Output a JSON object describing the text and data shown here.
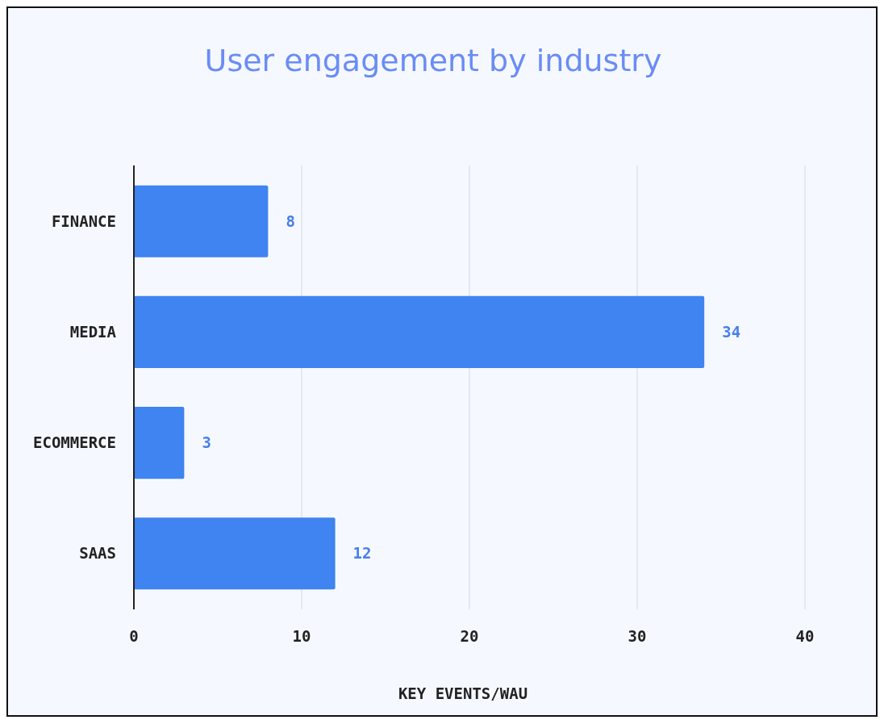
{
  "chart_data": {
    "type": "bar",
    "orientation": "horizontal",
    "title": "User engagement by industry",
    "xlabel": "KEY EVENTS/WAU",
    "categories": [
      "FINANCE",
      "MEDIA",
      "ECOMMERCE",
      "SAAS"
    ],
    "values": [
      8,
      34,
      3,
      12
    ],
    "color": "#3f84f0",
    "data_labels": true,
    "xlim": [
      0,
      40
    ],
    "xticks": [
      0,
      10,
      20,
      30,
      40
    ],
    "grid": "x"
  }
}
